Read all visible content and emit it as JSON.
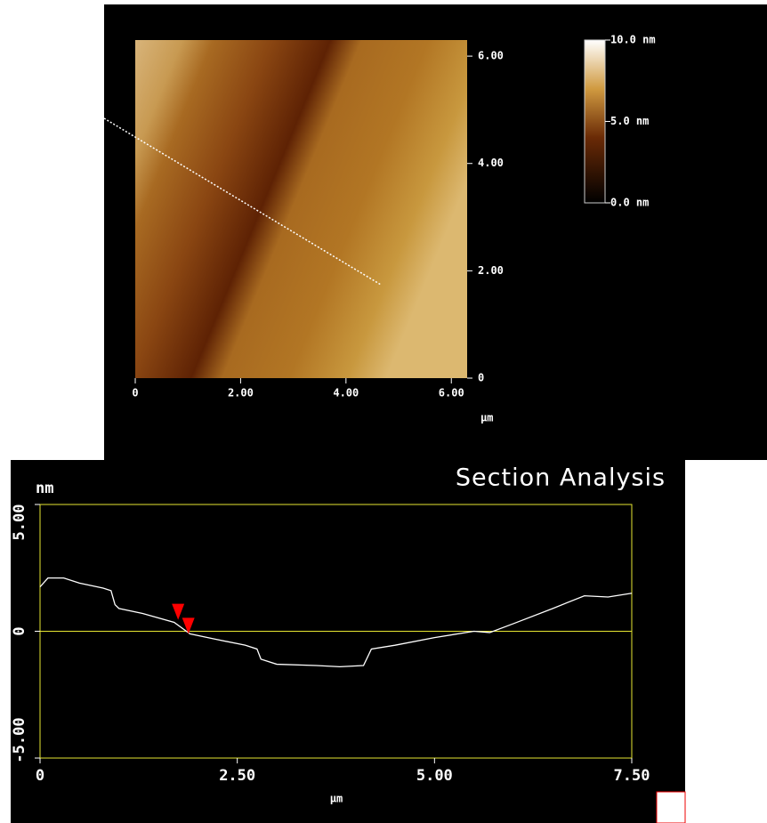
{
  "chart_data": [
    {
      "type": "image",
      "xlim": [
        0,
        6.3
      ],
      "ylim": [
        0,
        6.3
      ],
      "xticks": [
        0,
        {
          "value": 2,
          "label": "2.00"
        },
        {
          "value": 4,
          "label": "4.00"
        },
        {
          "value": 6,
          "label": "6.00"
        }
      ],
      "yticks": [
        0,
        {
          "value": 2,
          "label": "2.00"
        },
        {
          "value": 4,
          "label": "4.00"
        },
        {
          "value": 6,
          "label": "6.00"
        }
      ],
      "x_label": "µm",
      "colorbar": {
        "clim": [
          0,
          10
        ],
        "ticks": [
          {
            "value": 10,
            "label": "10.0 nm"
          },
          {
            "value": 5,
            "label": "5.0 nm"
          },
          {
            "value": 0,
            "label": "0.0 nm"
          }
        ]
      }
    },
    {
      "type": "line",
      "title": "Section Analysis",
      "x_label": "µm",
      "y_label": "nm",
      "xlim": [
        0,
        7.5
      ],
      "ylim": [
        -5,
        5
      ],
      "xticks": [
        0,
        {
          "value": 2.5,
          "label": "2.50"
        },
        {
          "value": 5,
          "label": "5.00"
        },
        {
          "value": 7.5,
          "label": "7.50"
        }
      ],
      "yticks": [
        {
          "value": -5,
          "label": "-5.00"
        },
        0,
        {
          "value": 5,
          "label": "5.00"
        }
      ],
      "zero_line": true,
      "frame_color": "#e6e632",
      "series": [
        {
          "color": "#ffffff",
          "x": [
            0,
            0.1,
            0.3,
            0.5,
            0.8,
            0.9,
            0.95,
            1.0,
            1.3,
            1.7,
            1.9,
            2.2,
            2.6,
            2.75,
            2.8,
            3.0,
            3.5,
            3.8,
            4.1,
            4.2,
            4.5,
            5.0,
            5.5,
            5.7,
            6.0,
            6.5,
            6.9,
            7.2,
            7.5
          ],
          "values": [
            1.75,
            2.1,
            2.1,
            1.9,
            1.7,
            1.6,
            1.05,
            0.9,
            0.7,
            0.35,
            -0.1,
            -0.3,
            -0.55,
            -0.7,
            -1.1,
            -1.3,
            -1.35,
            -1.4,
            -1.35,
            -0.7,
            -0.55,
            -0.25,
            0,
            -0.05,
            0.3,
            0.9,
            1.4,
            1.35,
            1.5
          ]
        }
      ],
      "markers": {
        "color": "#ff0000",
        "x": [
          1.75,
          1.88
        ],
        "values": [
          0.45,
          -0.1
        ]
      }
    }
  ]
}
